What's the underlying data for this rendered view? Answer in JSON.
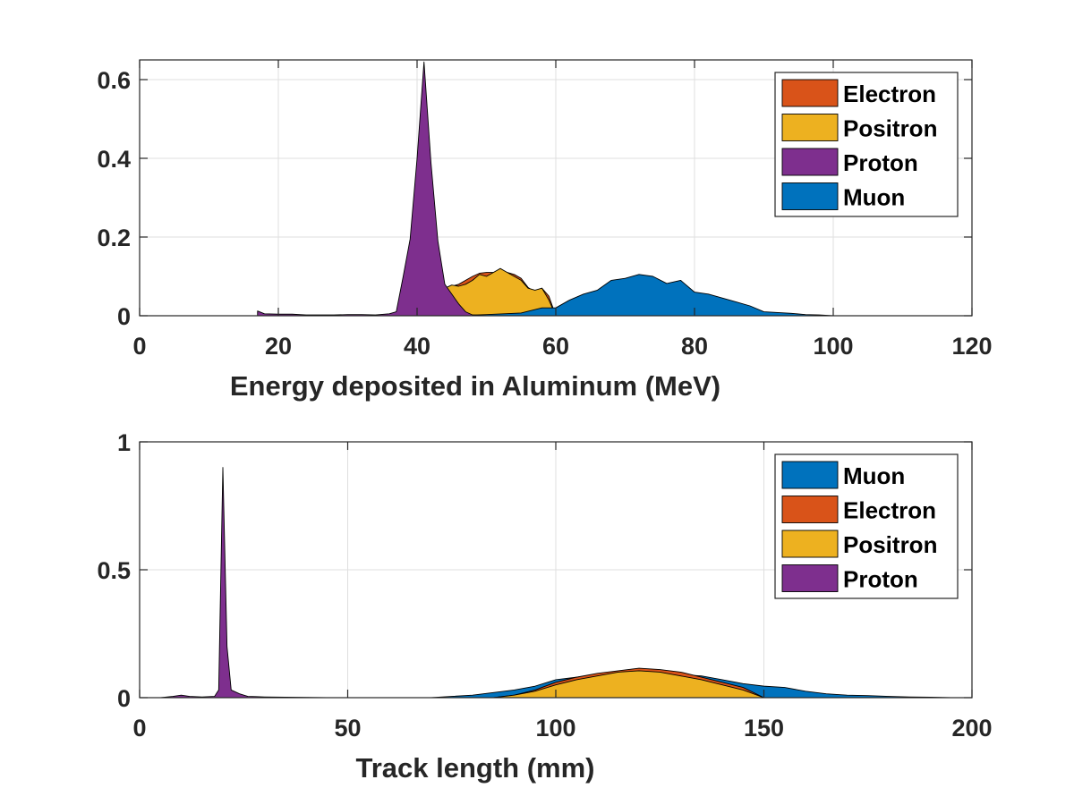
{
  "colors": {
    "Electron": "#D95319",
    "Positron": "#EDB120",
    "Proton": "#7E2F8E",
    "Muon": "#0072BD"
  },
  "chart_data": [
    {
      "type": "area",
      "xlabel": "Energy deposited in Aluminum (MeV)",
      "ylabel": "",
      "xlim": [
        0,
        120
      ],
      "ylim": [
        0,
        0.65
      ],
      "xticks": [
        "0",
        "20",
        "40",
        "60",
        "80",
        "100",
        "120"
      ],
      "yticks": [
        "0",
        "0.2",
        "0.4",
        "0.6"
      ],
      "grid": true,
      "legend_position": "top-right",
      "legend": [
        "Electron",
        "Positron",
        "Proton",
        "Muon"
      ],
      "series": [
        {
          "name": "Electron",
          "x": [
            44,
            45,
            46,
            47,
            48,
            49,
            50,
            51,
            52,
            53,
            54,
            55,
            56,
            57,
            58,
            59,
            60
          ],
          "y": [
            0,
            0.075,
            0.08,
            0.09,
            0.1,
            0.108,
            0.11,
            0.11,
            0.118,
            0.11,
            0.105,
            0.095,
            0.072,
            0.06,
            0.07,
            0.05,
            0
          ]
        },
        {
          "name": "Positron",
          "x": [
            43,
            44,
            45,
            46,
            47,
            48,
            49,
            50,
            51,
            52,
            53,
            54,
            55,
            56,
            57,
            58,
            59,
            60
          ],
          "y": [
            0,
            0.07,
            0.078,
            0.075,
            0.08,
            0.09,
            0.105,
            0.1,
            0.11,
            0.12,
            0.11,
            0.1,
            0.09,
            0.07,
            0.065,
            0.07,
            0.04,
            0
          ]
        },
        {
          "name": "Muon",
          "x": [
            45,
            50,
            55,
            58,
            60,
            62,
            64,
            66,
            68,
            70,
            72,
            74,
            76,
            78,
            80,
            82,
            84,
            86,
            88,
            90,
            92,
            94,
            96,
            98,
            100
          ],
          "y": [
            0,
            0.003,
            0.007,
            0.02,
            0.02,
            0.04,
            0.055,
            0.065,
            0.09,
            0.095,
            0.105,
            0.1,
            0.082,
            0.09,
            0.06,
            0.055,
            0.045,
            0.035,
            0.025,
            0.01,
            0.008,
            0.006,
            0.003,
            0.002,
            0
          ]
        },
        {
          "name": "Proton",
          "x": [
            17,
            18,
            20,
            22,
            24,
            26,
            28,
            30,
            32,
            34,
            36,
            37,
            38,
            39,
            40,
            41,
            42,
            43,
            44,
            45,
            46,
            47,
            48,
            50
          ],
          "y": [
            0.012,
            0.005,
            0.004,
            0.004,
            0.002,
            0.002,
            0.002,
            0.003,
            0.003,
            0.002,
            0.005,
            0.01,
            0.1,
            0.195,
            0.4,
            0.645,
            0.39,
            0.19,
            0.08,
            0.055,
            0.03,
            0.01,
            0.002,
            0
          ]
        }
      ]
    },
    {
      "type": "area",
      "xlabel": "Track length (mm)",
      "ylabel": "",
      "xlim": [
        0,
        200
      ],
      "ylim": [
        0,
        1
      ],
      "xticks": [
        "0",
        "50",
        "100",
        "150",
        "200"
      ],
      "yticks": [
        "0",
        "0.5",
        "1"
      ],
      "grid": true,
      "legend_position": "top-right",
      "legend": [
        "Muon",
        "Electron",
        "Positron",
        "Proton"
      ],
      "series": [
        {
          "name": "Muon",
          "x": [
            70,
            75,
            80,
            85,
            90,
            95,
            100,
            105,
            110,
            115,
            120,
            125,
            130,
            135,
            140,
            145,
            150,
            155,
            160,
            165,
            170,
            175,
            180,
            185,
            190,
            195
          ],
          "y": [
            0,
            0.005,
            0.01,
            0.02,
            0.03,
            0.045,
            0.07,
            0.08,
            0.09,
            0.1,
            0.11,
            0.1,
            0.09,
            0.085,
            0.07,
            0.055,
            0.045,
            0.04,
            0.025,
            0.015,
            0.01,
            0.008,
            0.005,
            0.003,
            0.002,
            0
          ]
        },
        {
          "name": "Electron",
          "x": [
            85,
            90,
            95,
            100,
            105,
            110,
            115,
            120,
            125,
            130,
            135,
            140,
            145,
            150
          ],
          "y": [
            0,
            0.01,
            0.03,
            0.06,
            0.08,
            0.095,
            0.105,
            0.115,
            0.11,
            0.1,
            0.08,
            0.06,
            0.04,
            0
          ]
        },
        {
          "name": "Positron",
          "x": [
            85,
            90,
            95,
            100,
            105,
            110,
            115,
            120,
            125,
            130,
            135,
            140,
            145,
            150
          ],
          "y": [
            0,
            0.01,
            0.025,
            0.05,
            0.07,
            0.085,
            0.1,
            0.105,
            0.1,
            0.085,
            0.07,
            0.05,
            0.03,
            0
          ]
        },
        {
          "name": "Proton",
          "x": [
            5,
            8,
            10,
            12,
            15,
            18,
            19,
            20,
            21,
            22,
            24,
            26,
            28,
            30,
            35,
            40,
            45
          ],
          "y": [
            0,
            0.005,
            0.01,
            0.005,
            0.003,
            0.005,
            0.03,
            0.9,
            0.2,
            0.03,
            0.015,
            0.005,
            0.004,
            0.003,
            0.002,
            0.001,
            0
          ]
        }
      ]
    }
  ]
}
